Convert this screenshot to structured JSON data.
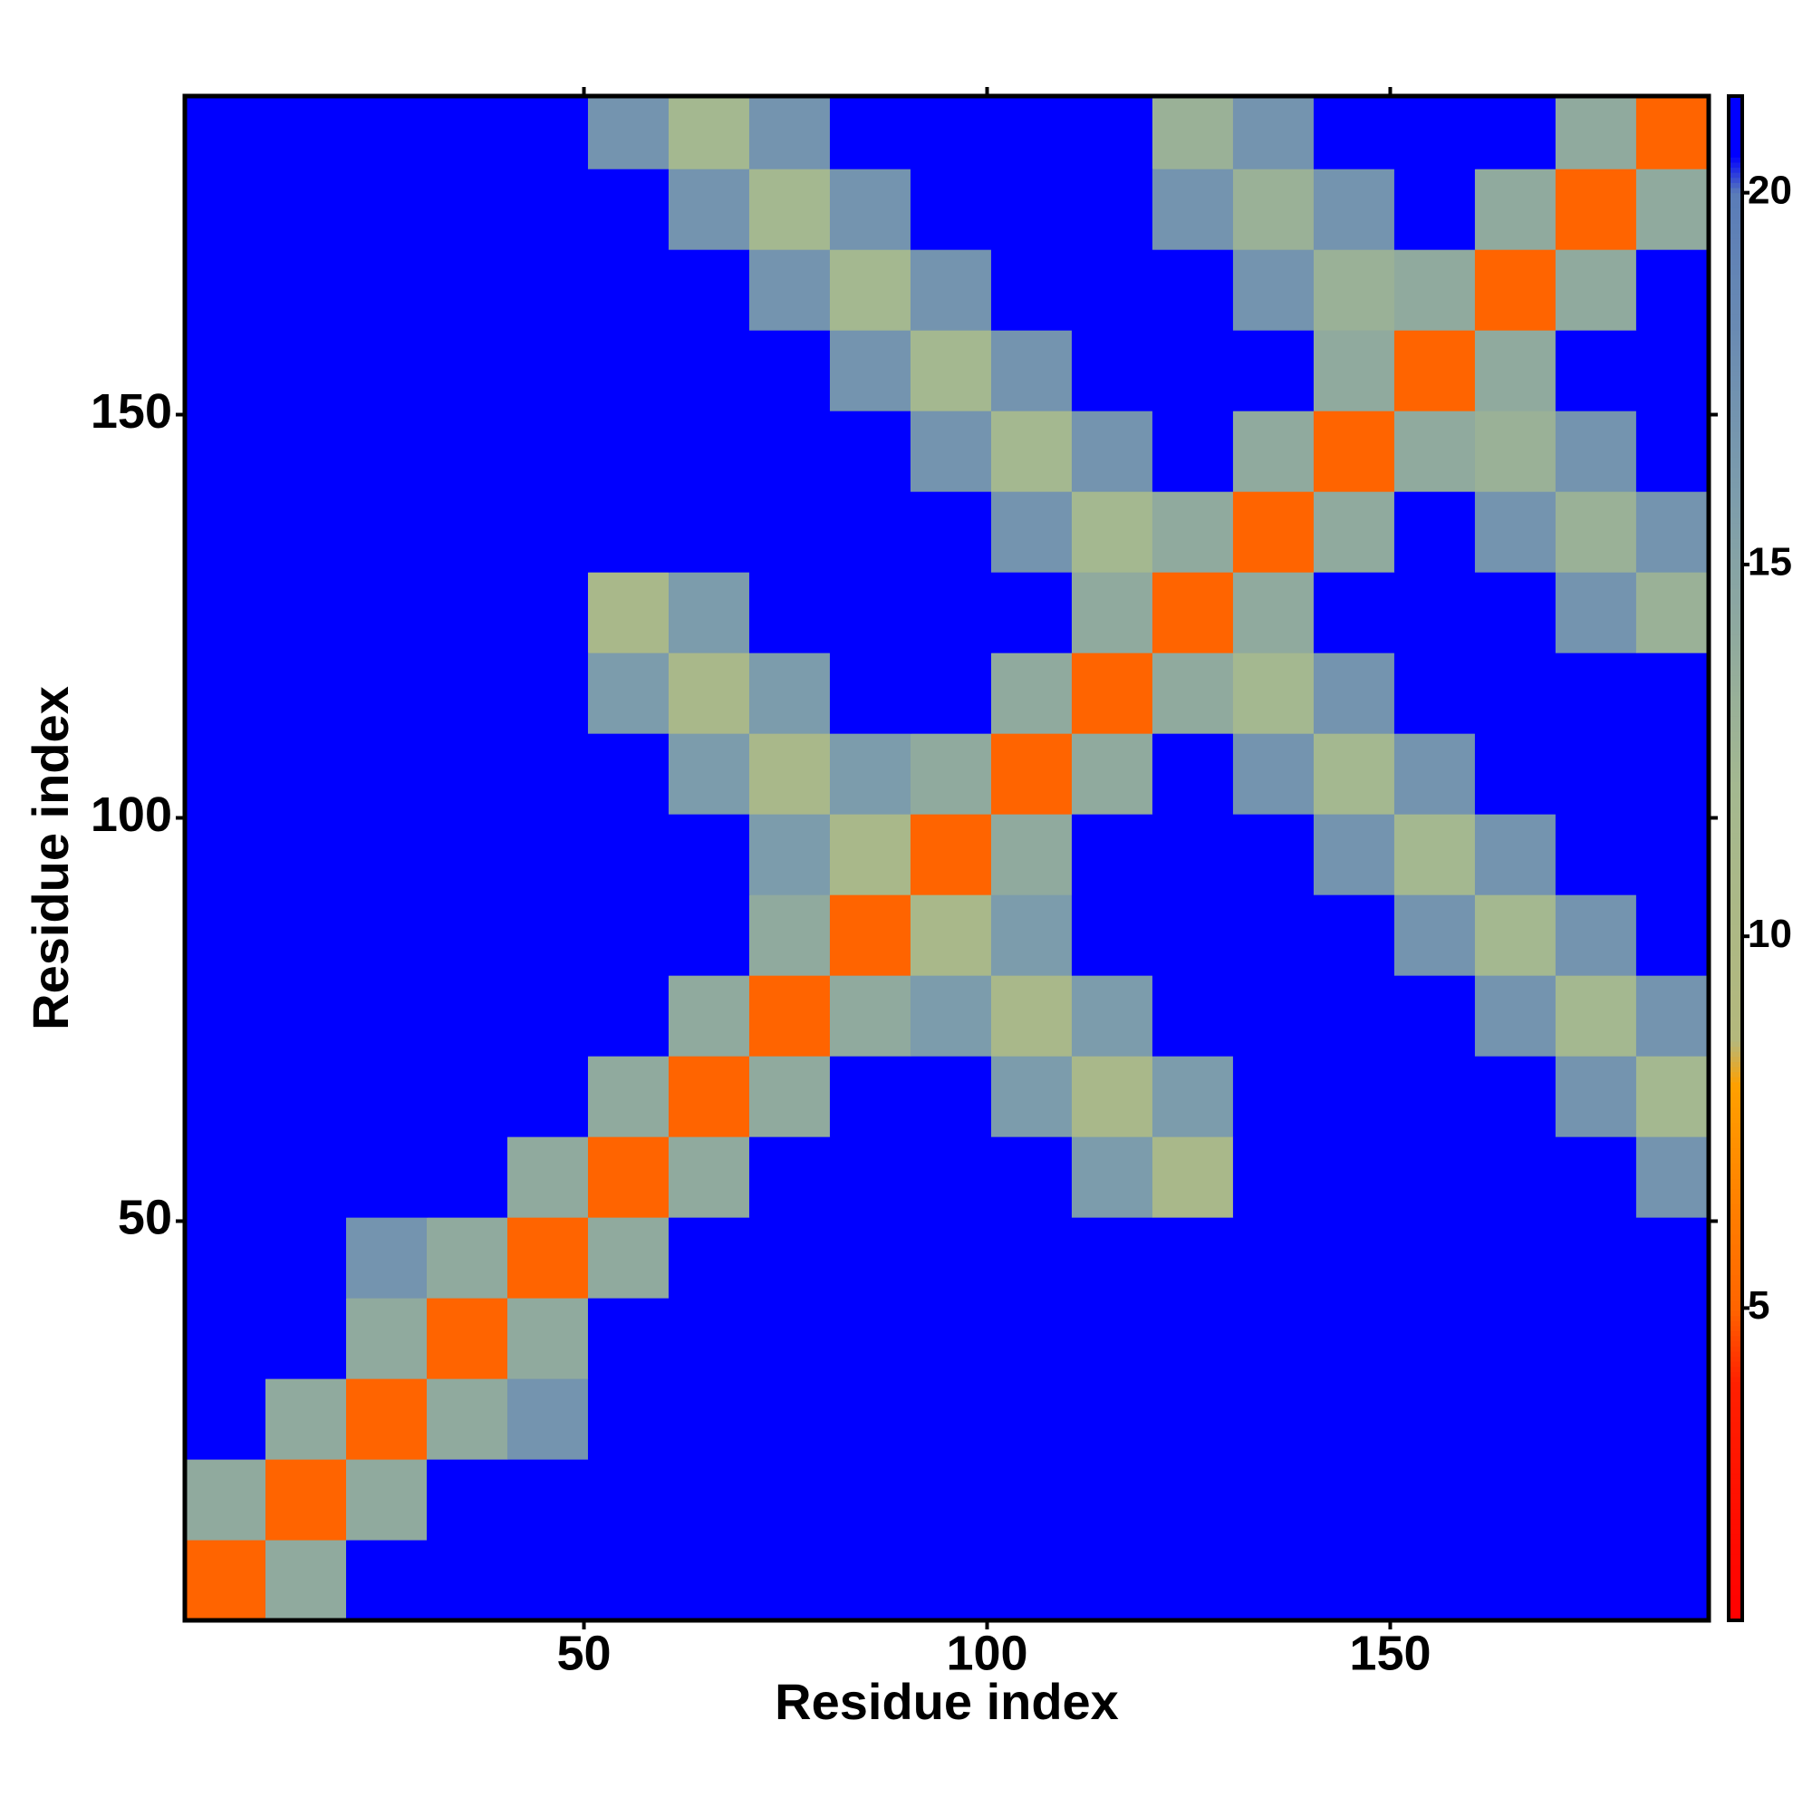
{
  "chart_data": {
    "type": "heatmap",
    "x_label": "Residue index",
    "y_label": "Residue index",
    "x_bins": [
      0.5,
      10.5,
      20.5,
      30.5,
      40.5,
      50.5,
      60.5,
      70.5,
      80.5,
      90.5,
      100.5,
      110.5,
      120.5,
      130.5,
      140.5,
      150.5,
      160.5,
      170.5,
      180.5,
      189.5
    ],
    "y_bins": [
      0.5,
      10.5,
      20.5,
      30.5,
      40.5,
      50.5,
      60.5,
      70.5,
      80.5,
      90.5,
      100.5,
      110.5,
      120.5,
      130.5,
      140.5,
      150.5,
      160.5,
      170.5,
      180.5,
      189.5
    ],
    "z": [
      [
        5,
        14,
        21,
        21,
        21,
        21,
        21,
        21,
        21,
        21,
        21,
        21,
        21,
        21,
        21,
        21,
        21,
        21,
        21
      ],
      [
        14,
        5,
        14,
        21,
        21,
        21,
        21,
        21,
        21,
        21,
        21,
        21,
        21,
        21,
        21,
        21,
        21,
        21,
        21
      ],
      [
        21,
        14,
        5,
        14,
        17,
        21,
        21,
        21,
        21,
        21,
        21,
        21,
        21,
        21,
        21,
        21,
        21,
        21,
        21
      ],
      [
        21,
        21,
        14,
        5,
        14,
        21,
        21,
        21,
        21,
        21,
        21,
        21,
        21,
        21,
        21,
        21,
        21,
        21,
        21
      ],
      [
        21,
        21,
        17,
        14,
        5,
        14,
        21,
        21,
        21,
        21,
        21,
        21,
        21,
        21,
        21,
        21,
        21,
        21,
        21
      ],
      [
        21,
        21,
        21,
        21,
        14,
        5,
        14,
        21,
        21,
        21,
        21,
        16,
        11,
        21,
        21,
        21,
        21,
        21,
        17
      ],
      [
        21,
        21,
        21,
        21,
        21,
        14,
        5,
        14,
        21,
        21,
        16,
        11,
        16,
        21,
        21,
        21,
        21,
        17,
        12
      ],
      [
        21,
        21,
        21,
        21,
        21,
        21,
        14,
        5,
        14,
        16,
        11,
        16,
        21,
        21,
        21,
        21,
        17,
        12,
        17
      ],
      [
        21,
        21,
        21,
        21,
        21,
        21,
        21,
        14,
        5,
        11,
        16,
        21,
        21,
        21,
        21,
        17,
        12,
        17,
        21
      ],
      [
        21,
        21,
        21,
        21,
        21,
        21,
        21,
        16,
        11,
        5,
        14,
        21,
        21,
        21,
        17,
        12,
        17,
        21,
        21
      ],
      [
        21,
        21,
        21,
        21,
        21,
        21,
        16,
        11,
        16,
        14,
        5,
        14,
        21,
        17,
        12,
        17,
        21,
        21,
        21
      ],
      [
        21,
        21,
        21,
        21,
        21,
        16,
        11,
        16,
        21,
        21,
        14,
        5,
        14,
        12,
        17,
        21,
        21,
        21,
        21
      ],
      [
        21,
        21,
        21,
        21,
        21,
        11,
        16,
        21,
        21,
        21,
        21,
        14,
        5,
        14,
        21,
        21,
        21,
        17,
        13
      ],
      [
        21,
        21,
        21,
        21,
        21,
        21,
        21,
        21,
        21,
        21,
        17,
        12,
        14,
        5,
        14,
        21,
        17,
        13,
        17
      ],
      [
        21,
        21,
        21,
        21,
        21,
        21,
        21,
        21,
        21,
        17,
        12,
        17,
        21,
        14,
        5,
        14,
        13,
        17,
        21
      ],
      [
        21,
        21,
        21,
        21,
        21,
        21,
        21,
        21,
        17,
        12,
        17,
        21,
        21,
        21,
        14,
        5,
        14,
        21,
        21
      ],
      [
        21,
        21,
        21,
        21,
        21,
        21,
        21,
        17,
        12,
        17,
        21,
        21,
        21,
        17,
        13,
        14,
        5,
        14,
        21
      ],
      [
        21,
        21,
        21,
        21,
        21,
        21,
        17,
        12,
        17,
        21,
        21,
        21,
        17,
        13,
        17,
        21,
        14,
        5,
        14
      ],
      [
        21,
        21,
        21,
        21,
        21,
        17,
        12,
        17,
        21,
        21,
        21,
        21,
        13,
        17,
        21,
        21,
        21,
        14,
        5
      ]
    ],
    "xlim": [
      0.5,
      189.5
    ],
    "ylim": [
      0.5,
      189.5
    ],
    "xticks": [
      50,
      100,
      150
    ],
    "yticks": [
      50,
      100,
      150
    ],
    "clim": [
      0.8,
      21.3
    ],
    "cticks": [
      5,
      10,
      15,
      20
    ],
    "colorscale": [
      [
        0.8,
        "#ff0000"
      ],
      [
        4,
        "#ff2000"
      ],
      [
        5,
        "#ff6400"
      ],
      [
        8,
        "#ffa000"
      ],
      [
        8.6,
        "#b4b87c"
      ],
      [
        12,
        "#a4b890"
      ],
      [
        16,
        "#7c9cac"
      ],
      [
        20,
        "#5a7cb8"
      ],
      [
        20.5,
        "#0000ff"
      ],
      [
        21.3,
        "#0000ff"
      ]
    ]
  }
}
